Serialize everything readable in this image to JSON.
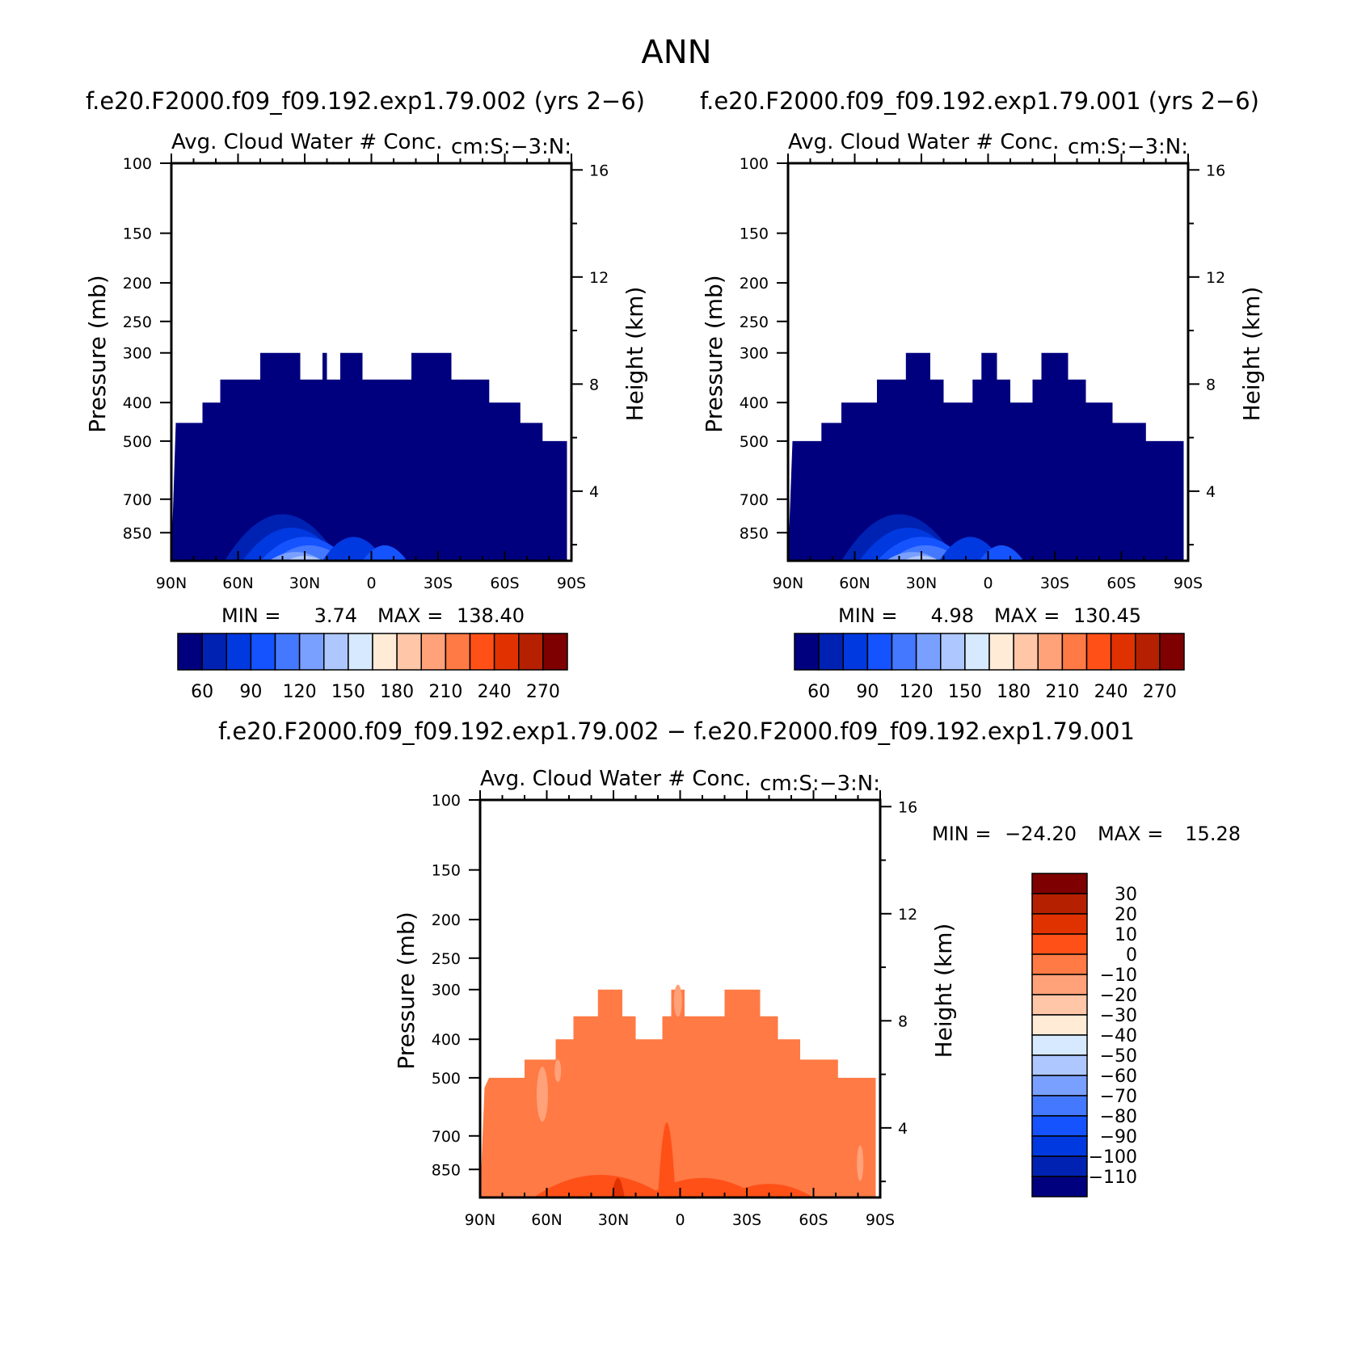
{
  "main_title": "ANN",
  "diff_title": "f.e20.F2000.f09_f09.192.exp1.79.002 − f.e20.F2000.f09_f09.192.exp1.79.001",
  "colors": {
    "abs_palette": [
      "#00007f",
      "#0022b2",
      "#0039e0",
      "#1553ff",
      "#4479ff",
      "#7aa0ff",
      "#aec7ff",
      "#d6e9ff",
      "#ffebd6",
      "#ffc6a8",
      "#ffa179",
      "#ff7a44",
      "#ff5018",
      "#e03200",
      "#b52000",
      "#7f0000"
    ],
    "diff_palette": [
      "#00007f",
      "#0022b2",
      "#0039e0",
      "#1553ff",
      "#4479ff",
      "#7aa0ff",
      "#aec7ff",
      "#d6e9ff",
      "#ffebd6",
      "#ffc6a8",
      "#ffa179",
      "#ff7a44",
      "#ff5018",
      "#e03200",
      "#b52000",
      "#7f0000"
    ]
  },
  "chart_data": [
    {
      "type": "heatmap",
      "title": "f.e20.F2000.f09_f09.192.exp1.79.002 (yrs 2−6)",
      "subtitle_left": "Avg. Cloud Water # Conc.",
      "subtitle_right": "cm:S:−3:N:",
      "xlabel": "",
      "ylabel": "Pressure (mb)",
      "y2label": "Height (km)",
      "xticks": [
        "90N",
        "60N",
        "30N",
        "0",
        "30S",
        "60S",
        "90S"
      ],
      "yticks": [
        100,
        150,
        200,
        250,
        300,
        400,
        500,
        700,
        850
      ],
      "y2ticks": [
        4,
        8,
        12,
        16
      ],
      "ylim": [
        100,
        1000
      ],
      "y_scale": "log",
      "min_label": "MIN =",
      "min_value": "3.74",
      "max_label": "MAX =",
      "max_value": "138.40",
      "colorbar_labels": [
        "60",
        "90",
        "120",
        "150",
        "180",
        "210",
        "240",
        "270"
      ],
      "field_top": [
        {
          "lat": 90,
          "p": 1000
        },
        {
          "lat": 88,
          "p": 450
        },
        {
          "lat": 76,
          "p": 450
        },
        {
          "lat": 76,
          "p": 400
        },
        {
          "lat": 68,
          "p": 400
        },
        {
          "lat": 68,
          "p": 350
        },
        {
          "lat": 50,
          "p": 350
        },
        {
          "lat": 50,
          "p": 300
        },
        {
          "lat": 32,
          "p": 300
        },
        {
          "lat": 32,
          "p": 350
        },
        {
          "lat": 22,
          "p": 350
        },
        {
          "lat": 22,
          "p": 300
        },
        {
          "lat": 20,
          "p": 300
        },
        {
          "lat": 20,
          "p": 350
        },
        {
          "lat": 14,
          "p": 350
        },
        {
          "lat": 14,
          "p": 300
        },
        {
          "lat": 4,
          "p": 300
        },
        {
          "lat": 4,
          "p": 350
        },
        {
          "lat": -18,
          "p": 350
        },
        {
          "lat": -18,
          "p": 300
        },
        {
          "lat": -36,
          "p": 300
        },
        {
          "lat": -36,
          "p": 350
        },
        {
          "lat": -53,
          "p": 350
        },
        {
          "lat": -53,
          "p": 400
        },
        {
          "lat": -67,
          "p": 400
        },
        {
          "lat": -67,
          "p": 450
        },
        {
          "lat": -77,
          "p": 450
        },
        {
          "lat": -77,
          "p": 500
        },
        {
          "lat": -88,
          "p": 500
        },
        {
          "lat": -88,
          "p": 1000
        }
      ]
    },
    {
      "type": "heatmap",
      "title": "f.e20.F2000.f09_f09.192.exp1.79.001 (yrs 2−6)",
      "subtitle_left": "Avg. Cloud Water # Conc.",
      "subtitle_right": "cm:S:−3:N:",
      "xlabel": "",
      "ylabel": "Pressure (mb)",
      "y2label": "Height (km)",
      "xticks": [
        "90N",
        "60N",
        "30N",
        "0",
        "30S",
        "60S",
        "90S"
      ],
      "yticks": [
        100,
        150,
        200,
        250,
        300,
        400,
        500,
        700,
        850
      ],
      "y2ticks": [
        4,
        8,
        12,
        16
      ],
      "ylim": [
        100,
        1000
      ],
      "y_scale": "log",
      "min_label": "MIN =",
      "min_value": "4.98",
      "max_label": "MAX =",
      "max_value": "130.45",
      "colorbar_labels": [
        "60",
        "90",
        "120",
        "150",
        "180",
        "210",
        "240",
        "270"
      ],
      "field_top": [
        {
          "lat": 90,
          "p": 1000
        },
        {
          "lat": 88,
          "p": 500
        },
        {
          "lat": 75,
          "p": 500
        },
        {
          "lat": 75,
          "p": 450
        },
        {
          "lat": 66,
          "p": 450
        },
        {
          "lat": 66,
          "p": 400
        },
        {
          "lat": 50,
          "p": 400
        },
        {
          "lat": 50,
          "p": 350
        },
        {
          "lat": 37,
          "p": 350
        },
        {
          "lat": 37,
          "p": 300
        },
        {
          "lat": 26,
          "p": 300
        },
        {
          "lat": 26,
          "p": 350
        },
        {
          "lat": 20,
          "p": 350
        },
        {
          "lat": 20,
          "p": 400
        },
        {
          "lat": 7,
          "p": 400
        },
        {
          "lat": 7,
          "p": 350
        },
        {
          "lat": 3,
          "p": 350
        },
        {
          "lat": 3,
          "p": 300
        },
        {
          "lat": -4,
          "p": 300
        },
        {
          "lat": -4,
          "p": 350
        },
        {
          "lat": -10,
          "p": 350
        },
        {
          "lat": -10,
          "p": 400
        },
        {
          "lat": -20,
          "p": 400
        },
        {
          "lat": -20,
          "p": 350
        },
        {
          "lat": -24,
          "p": 350
        },
        {
          "lat": -24,
          "p": 300
        },
        {
          "lat": -36,
          "p": 300
        },
        {
          "lat": -36,
          "p": 350
        },
        {
          "lat": -44,
          "p": 350
        },
        {
          "lat": -44,
          "p": 400
        },
        {
          "lat": -56,
          "p": 400
        },
        {
          "lat": -56,
          "p": 450
        },
        {
          "lat": -71,
          "p": 450
        },
        {
          "lat": -71,
          "p": 500
        },
        {
          "lat": -88,
          "p": 500
        },
        {
          "lat": -88,
          "p": 1000
        }
      ]
    },
    {
      "type": "heatmap",
      "title": "",
      "subtitle_left": "Avg. Cloud Water # Conc.",
      "subtitle_right": "cm:S:−3:N:",
      "xlabel": "",
      "ylabel": "Pressure (mb)",
      "y2label": "Height (km)",
      "xticks": [
        "90N",
        "60N",
        "30N",
        "0",
        "30S",
        "60S",
        "90S"
      ],
      "yticks": [
        100,
        150,
        200,
        250,
        300,
        400,
        500,
        700,
        850
      ],
      "y2ticks": [
        4,
        8,
        12,
        16
      ],
      "ylim": [
        100,
        1000
      ],
      "y_scale": "log",
      "min_label": "MIN =",
      "min_value": "−24.20",
      "max_label": "MAX =",
      "max_value": "15.28",
      "colorbar_labels": [
        "30",
        "20",
        "10",
        "0",
        "−10",
        "−20",
        "−30",
        "−40",
        "−50",
        "−60",
        "−70",
        "−80",
        "−90",
        "−100",
        "−110"
      ],
      "field_top": [
        {
          "lat": 90,
          "p": 1000
        },
        {
          "lat": 88,
          "p": 530
        },
        {
          "lat": 86,
          "p": 500
        },
        {
          "lat": 70,
          "p": 500
        },
        {
          "lat": 70,
          "p": 450
        },
        {
          "lat": 56,
          "p": 450
        },
        {
          "lat": 56,
          "p": 400
        },
        {
          "lat": 48,
          "p": 400
        },
        {
          "lat": 48,
          "p": 350
        },
        {
          "lat": 37,
          "p": 350
        },
        {
          "lat": 37,
          "p": 300
        },
        {
          "lat": 26,
          "p": 300
        },
        {
          "lat": 26,
          "p": 350
        },
        {
          "lat": 20,
          "p": 350
        },
        {
          "lat": 20,
          "p": 400
        },
        {
          "lat": 8,
          "p": 400
        },
        {
          "lat": 8,
          "p": 350
        },
        {
          "lat": 4,
          "p": 350
        },
        {
          "lat": 4,
          "p": 300
        },
        {
          "lat": -2,
          "p": 300
        },
        {
          "lat": -2,
          "p": 350
        },
        {
          "lat": -20,
          "p": 350
        },
        {
          "lat": -20,
          "p": 300
        },
        {
          "lat": -36,
          "p": 300
        },
        {
          "lat": -36,
          "p": 350
        },
        {
          "lat": -44,
          "p": 350
        },
        {
          "lat": -44,
          "p": 400
        },
        {
          "lat": -54,
          "p": 400
        },
        {
          "lat": -54,
          "p": 450
        },
        {
          "lat": -71,
          "p": 450
        },
        {
          "lat": -71,
          "p": 500
        },
        {
          "lat": -88,
          "p": 500
        },
        {
          "lat": -88,
          "p": 1000
        }
      ]
    }
  ]
}
